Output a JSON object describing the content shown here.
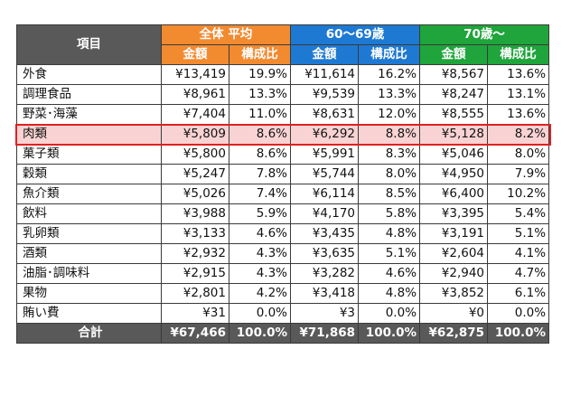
{
  "header": {
    "item": "項目",
    "groups": [
      "全体 平均",
      "60〜69歳",
      "70歳〜"
    ],
    "sub": [
      "金額",
      "構成比"
    ]
  },
  "rows": [
    {
      "label": "外食",
      "v": [
        "¥13,419",
        "19.9%",
        "¥11,614",
        "16.2%",
        "¥8,567",
        "13.6%"
      ]
    },
    {
      "label": "調理食品",
      "v": [
        "¥8,961",
        "13.3%",
        "¥9,539",
        "13.3%",
        "¥8,247",
        "13.1%"
      ]
    },
    {
      "label": "野菜･海藻",
      "v": [
        "¥7,404",
        "11.0%",
        "¥8,631",
        "12.0%",
        "¥8,555",
        "13.6%"
      ]
    },
    {
      "label": "肉類",
      "v": [
        "¥5,809",
        "8.6%",
        "¥6,292",
        "8.8%",
        "¥5,128",
        "8.2%"
      ],
      "highlight": true
    },
    {
      "label": "菓子類",
      "v": [
        "¥5,800",
        "8.6%",
        "¥5,991",
        "8.3%",
        "¥5,046",
        "8.0%"
      ]
    },
    {
      "label": "穀類",
      "v": [
        "¥5,247",
        "7.8%",
        "¥5,744",
        "8.0%",
        "¥4,950",
        "7.9%"
      ]
    },
    {
      "label": "魚介類",
      "v": [
        "¥5,026",
        "7.4%",
        "¥6,114",
        "8.5%",
        "¥6,400",
        "10.2%"
      ]
    },
    {
      "label": "飲料",
      "v": [
        "¥3,988",
        "5.9%",
        "¥4,170",
        "5.8%",
        "¥3,395",
        "5.4%"
      ]
    },
    {
      "label": "乳卵類",
      "v": [
        "¥3,133",
        "4.6%",
        "¥3,435",
        "4.8%",
        "¥3,191",
        "5.1%"
      ]
    },
    {
      "label": "酒類",
      "v": [
        "¥2,932",
        "4.3%",
        "¥3,635",
        "5.1%",
        "¥2,604",
        "4.1%"
      ]
    },
    {
      "label": "油脂･調味料",
      "v": [
        "¥2,915",
        "4.3%",
        "¥3,282",
        "4.6%",
        "¥2,940",
        "4.7%"
      ]
    },
    {
      "label": "果物",
      "v": [
        "¥2,801",
        "4.2%",
        "¥3,418",
        "4.8%",
        "¥3,852",
        "6.1%"
      ]
    },
    {
      "label": "賄い費",
      "v": [
        "¥31",
        "0.0%",
        "¥3",
        "0.0%",
        "¥0",
        "0.0%"
      ]
    }
  ],
  "total": {
    "label": "合計",
    "v": [
      "¥67,466",
      "100.0%",
      "¥71,868",
      "100.0%",
      "¥62,875",
      "100.0%"
    ]
  },
  "colors": {
    "header_item": "#595959",
    "all_avg": "#f28a30",
    "age_60s": "#1e79d2",
    "age_70plus": "#1fa53b",
    "highlight_fill": "#f9d3d3",
    "highlight_border": "#e02020"
  }
}
